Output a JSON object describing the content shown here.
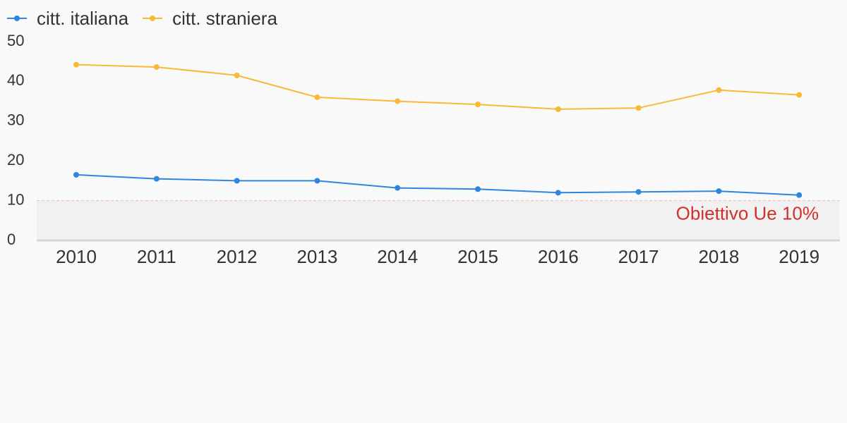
{
  "chart_data": {
    "type": "line",
    "categories": [
      "2010",
      "2011",
      "2012",
      "2013",
      "2014",
      "2015",
      "2016",
      "2017",
      "2018",
      "2019"
    ],
    "series": [
      {
        "name": "citt. italiana",
        "color": "#2e86de",
        "values": [
          16.5,
          15.5,
          15.0,
          15.0,
          13.2,
          12.9,
          12.0,
          12.2,
          12.4,
          11.4
        ]
      },
      {
        "name": "citt. straniera",
        "color": "#f9b937",
        "values": [
          44.2,
          43.6,
          41.5,
          36.0,
          35.0,
          34.2,
          33.0,
          33.3,
          37.8,
          36.6
        ]
      }
    ],
    "ylim": [
      0,
      50
    ],
    "yticks": [
      "0",
      "10",
      "20",
      "30",
      "40",
      "50"
    ],
    "target": {
      "value": 10,
      "label": "Obiettivo Ue 10%",
      "color": "#d0312d"
    },
    "grid": false,
    "legend": "top-left"
  }
}
